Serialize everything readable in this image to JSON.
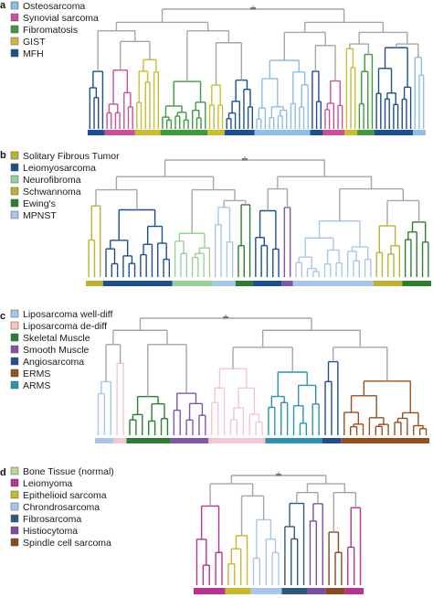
{
  "colors": {
    "lightblue": "#8fbde3",
    "pink": "#c9519a",
    "green": "#3f9a3f",
    "gold": "#c8bd33",
    "navy": "#1d4f8c",
    "gray": "#a6a6a6",
    "lightgreen": "#9ad19a",
    "olive": "#bcb334",
    "darkgreen": "#2d7d32",
    "paleblue": "#a9c8e9",
    "lightpink": "#f4c6cf",
    "purple": "#7e57a8",
    "deepblue": "#1f4e96",
    "brown": "#9a4e1e",
    "teal": "#2b93b0",
    "sage": "#b7d79a",
    "magenta": "#b8348e",
    "yellow": "#c7b72c",
    "darkslate": "#2e5a78",
    "violet": "#7a4fa3",
    "rust": "#8a4a1c"
  },
  "panels": [
    {
      "letter": "a",
      "legend": [
        {
          "label": "Osteosarcoma",
          "color": "lightblue"
        },
        {
          "label": "Synovial sarcoma",
          "color": "pink"
        },
        {
          "label": "Fibromatosis",
          "color": "green"
        },
        {
          "label": "GIST",
          "color": "gold"
        },
        {
          "label": "MFH",
          "color": "navy"
        }
      ],
      "clusters": [
        {
          "color": "navy",
          "leaves": 4
        },
        {
          "color": "pink",
          "leaves": 7
        },
        {
          "color": "gold",
          "leaves": 6
        },
        {
          "color": "green",
          "leaves": 11
        },
        {
          "color": "gold",
          "leaves": 4
        },
        {
          "color": "navy",
          "leaves": 7
        },
        {
          "color": "lightblue",
          "leaves": 13
        },
        {
          "color": "navy",
          "leaves": 3
        },
        {
          "color": "pink",
          "leaves": 5
        },
        {
          "color": "gold",
          "leaves": 3
        },
        {
          "color": "green",
          "leaves": 4
        },
        {
          "color": "navy",
          "leaves": 9
        },
        {
          "color": "lightblue",
          "leaves": 3
        }
      ]
    },
    {
      "letter": "b",
      "legend": [
        {
          "label": "Solitary Fibrous Tumor",
          "color": "olive"
        },
        {
          "label": "Leiomyosarcoma",
          "color": "navy"
        },
        {
          "label": "Neurofibroma",
          "color": "lightgreen"
        },
        {
          "label": "Schwannoma",
          "color": "olive"
        },
        {
          "label": "Ewing's",
          "color": "darkgreen"
        },
        {
          "label": "MPNST",
          "color": "paleblue"
        }
      ],
      "clusters": [
        {
          "color": "olive",
          "leaves": 3
        },
        {
          "color": "navy",
          "leaves": 12
        },
        {
          "color": "lightgreen",
          "leaves": 7
        },
        {
          "color": "paleblue",
          "leaves": 4
        },
        {
          "color": "darkgreen",
          "leaves": 3
        },
        {
          "color": "navy",
          "leaves": 5
        },
        {
          "color": "purple",
          "leaves": 2
        },
        {
          "color": "paleblue",
          "leaves": 14
        },
        {
          "color": "olive",
          "leaves": 5
        },
        {
          "color": "darkgreen",
          "leaves": 5
        }
      ]
    },
    {
      "letter": "c",
      "legend": [
        {
          "label": "Liposarcoma well-diff",
          "color": "paleblue"
        },
        {
          "label": "Liposarcoma de-diff",
          "color": "lightpink"
        },
        {
          "label": "Skeletal Muscle",
          "color": "darkgreen"
        },
        {
          "label": "Smooth Muscle",
          "color": "purple"
        },
        {
          "label": "Angiosarcoma",
          "color": "deepblue"
        },
        {
          "label": "ERMS",
          "color": "brown"
        },
        {
          "label": "ARMS",
          "color": "teal"
        }
      ],
      "clusters": [
        {
          "color": "paleblue",
          "leaves": 3
        },
        {
          "color": "lightpink",
          "leaves": 2
        },
        {
          "color": "darkgreen",
          "leaves": 7
        },
        {
          "color": "purple",
          "leaves": 6
        },
        {
          "color": "lightpink",
          "leaves": 9
        },
        {
          "color": "teal",
          "leaves": 9
        },
        {
          "color": "deepblue",
          "leaves": 3
        },
        {
          "color": "brown",
          "leaves": 14
        }
      ]
    },
    {
      "letter": "d",
      "legend": [
        {
          "label": "Bone Tissue (normal)",
          "color": "sage"
        },
        {
          "label": "Leiomyoma",
          "color": "magenta"
        },
        {
          "label": "Epithelioid sarcoma",
          "color": "yellow"
        },
        {
          "label": "Chrondrosarcoma",
          "color": "paleblue"
        },
        {
          "label": "Fibrosarcoma",
          "color": "darkslate"
        },
        {
          "label": "Histiocytoma",
          "color": "violet"
        },
        {
          "label": "Spindle cell sarcoma",
          "color": "rust"
        }
      ],
      "clusters": [
        {
          "color": "magenta",
          "leaves": 5
        },
        {
          "color": "yellow",
          "leaves": 4
        },
        {
          "color": "paleblue",
          "leaves": 5
        },
        {
          "color": "darkslate",
          "leaves": 4
        },
        {
          "color": "violet",
          "leaves": 3
        },
        {
          "color": "rust",
          "leaves": 3
        },
        {
          "color": "magenta",
          "leaves": 3
        }
      ]
    }
  ]
}
